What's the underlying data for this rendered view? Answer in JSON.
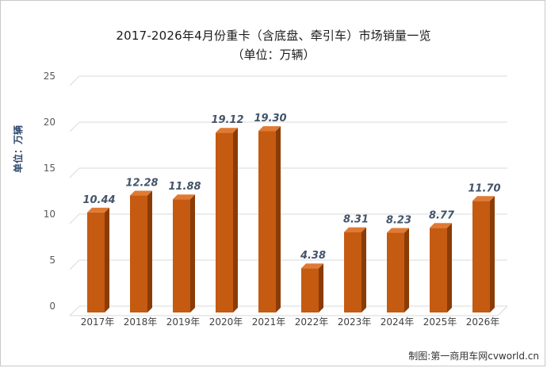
{
  "chart_data": {
    "type": "bar",
    "title_line1": "2017-2026年4月份重卡（含底盘、牵引车）市场销量一览",
    "title_line2": "（单位：万辆）",
    "ylabel": "单位：万辆",
    "xlabel": "",
    "categories": [
      "2017年",
      "2018年",
      "2019年",
      "2020年",
      "2021年",
      "2022年",
      "2023年",
      "2024年",
      "2025年",
      "2026年"
    ],
    "values": [
      10.44,
      12.28,
      11.88,
      19.12,
      19.3,
      4.38,
      8.31,
      8.23,
      8.77,
      11.7
    ],
    "value_labels": [
      "10.44",
      "12.28",
      "11.88",
      "19.12",
      "19.30",
      "4.38",
      "8.31",
      "8.23",
      "8.77",
      "11.70"
    ],
    "ylim": [
      0,
      25
    ],
    "yticks": [
      0,
      5,
      10,
      15,
      20,
      25
    ],
    "grid": true,
    "legend": "none",
    "colors": {
      "bar_front": "#c55a11",
      "bar_side": "#8a3c08",
      "bar_top": "#e07a33",
      "grid": "#d9d9d9",
      "label": "#44546a"
    }
  },
  "source": "制图:第一商用车网cvworld.cn"
}
